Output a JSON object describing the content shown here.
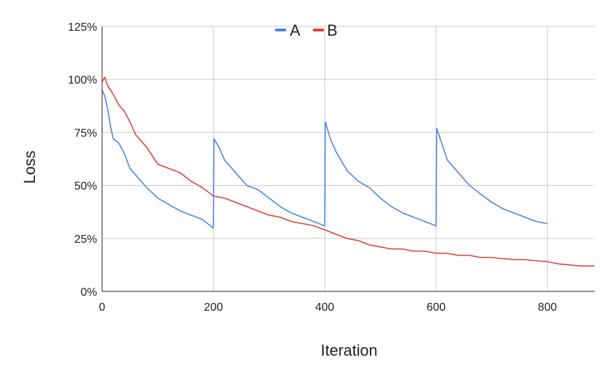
{
  "chart_data": {
    "type": "line",
    "title": "",
    "xlabel": "Iteration",
    "ylabel": "Loss",
    "xlim": [
      0,
      885
    ],
    "ylim": [
      0,
      1.25
    ],
    "x_ticks": [
      0,
      200,
      400,
      600,
      800
    ],
    "x_tick_labels": [
      "0",
      "200",
      "400",
      "600",
      "800"
    ],
    "y_ticks": [
      0,
      0.25,
      0.5,
      0.75,
      1.0,
      1.25
    ],
    "y_tick_labels": [
      "0%",
      "25%",
      "50%",
      "75%",
      "100%",
      "125%"
    ],
    "grid": true,
    "legend": {
      "position": "top-center",
      "entries": [
        "A",
        "B"
      ]
    },
    "series": [
      {
        "name": "A",
        "color": "#4a86e8",
        "x": [
          0,
          5,
          10,
          15,
          20,
          30,
          40,
          50,
          60,
          80,
          100,
          120,
          140,
          160,
          180,
          199,
          200,
          201,
          210,
          220,
          240,
          260,
          280,
          300,
          320,
          340,
          360,
          380,
          399,
          400,
          401,
          410,
          420,
          440,
          460,
          480,
          500,
          520,
          540,
          560,
          580,
          599,
          600,
          601,
          610,
          620,
          640,
          660,
          680,
          700,
          720,
          740,
          760,
          780,
          800
        ],
        "y": [
          0.95,
          0.92,
          0.86,
          0.78,
          0.72,
          0.7,
          0.65,
          0.58,
          0.55,
          0.49,
          0.44,
          0.41,
          0.38,
          0.36,
          0.34,
          0.3,
          0.3,
          0.72,
          0.68,
          0.62,
          0.56,
          0.5,
          0.48,
          0.44,
          0.4,
          0.37,
          0.35,
          0.33,
          0.31,
          0.31,
          0.8,
          0.72,
          0.66,
          0.57,
          0.52,
          0.49,
          0.44,
          0.4,
          0.37,
          0.35,
          0.33,
          0.31,
          0.31,
          0.77,
          0.7,
          0.62,
          0.56,
          0.5,
          0.46,
          0.42,
          0.39,
          0.37,
          0.35,
          0.33,
          0.32
        ]
      },
      {
        "name": "B",
        "color": "#db4437",
        "x": [
          0,
          5,
          10,
          20,
          30,
          40,
          50,
          60,
          70,
          80,
          90,
          100,
          120,
          140,
          160,
          180,
          200,
          220,
          240,
          260,
          280,
          300,
          320,
          340,
          360,
          380,
          400,
          420,
          440,
          460,
          480,
          500,
          520,
          540,
          560,
          580,
          600,
          620,
          640,
          660,
          680,
          700,
          720,
          740,
          760,
          780,
          800,
          820,
          840,
          860,
          885
        ],
        "y": [
          0.99,
          1.01,
          0.97,
          0.93,
          0.88,
          0.85,
          0.8,
          0.74,
          0.71,
          0.68,
          0.64,
          0.6,
          0.58,
          0.56,
          0.52,
          0.49,
          0.45,
          0.44,
          0.42,
          0.4,
          0.38,
          0.36,
          0.35,
          0.33,
          0.32,
          0.31,
          0.29,
          0.27,
          0.25,
          0.24,
          0.22,
          0.21,
          0.2,
          0.2,
          0.19,
          0.19,
          0.18,
          0.18,
          0.17,
          0.17,
          0.16,
          0.16,
          0.155,
          0.15,
          0.15,
          0.145,
          0.14,
          0.13,
          0.125,
          0.12,
          0.12
        ]
      }
    ]
  }
}
